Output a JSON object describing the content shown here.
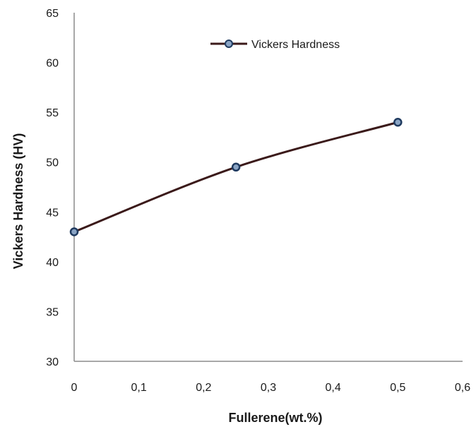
{
  "chart_data": {
    "type": "line",
    "title": "",
    "xlabel": "Fullerene(wt.%)",
    "ylabel": "Vickers Hardness  (HV)",
    "x_ticks": [
      "0",
      "0,1",
      "0,2",
      "0,3",
      "0,4",
      "0,5",
      "0,6"
    ],
    "y_ticks": [
      "30",
      "35",
      "40",
      "45",
      "50",
      "55",
      "60",
      "65"
    ],
    "xlim": [
      0,
      0.6
    ],
    "ylim": [
      30,
      65
    ],
    "grid": false,
    "legend_position": "top-center",
    "series": [
      {
        "name": "Vickers Hardness",
        "color": "#3b1a1a",
        "marker_color": "#1f3a5f",
        "x": [
          0,
          0.25,
          0.5
        ],
        "y": [
          43,
          49.5,
          54
        ]
      }
    ]
  }
}
